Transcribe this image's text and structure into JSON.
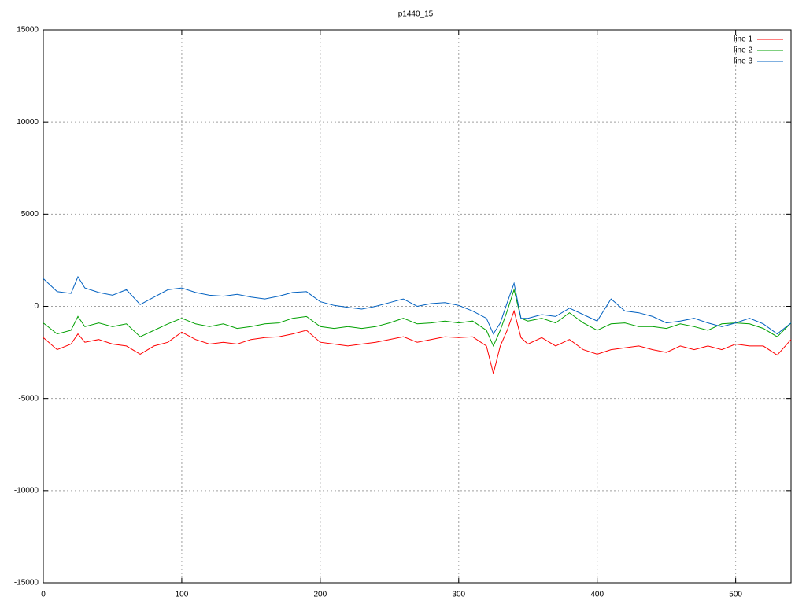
{
  "chart_data": {
    "type": "line",
    "title": "p1440_15",
    "x": [
      0,
      10,
      20,
      25,
      30,
      40,
      50,
      60,
      70,
      80,
      90,
      100,
      110,
      120,
      130,
      140,
      150,
      160,
      170,
      180,
      190,
      200,
      210,
      220,
      230,
      240,
      250,
      260,
      270,
      280,
      290,
      300,
      310,
      320,
      325,
      330,
      335,
      340,
      345,
      350,
      360,
      370,
      380,
      390,
      400,
      410,
      420,
      430,
      440,
      450,
      460,
      470,
      480,
      490,
      500,
      510,
      520,
      530,
      540
    ],
    "series": [
      {
        "name": "line 1",
        "color": "#ff0000",
        "values": [
          -1700,
          -2350,
          -2050,
          -1500,
          -1950,
          -1800,
          -2050,
          -2150,
          -2600,
          -2150,
          -1950,
          -1400,
          -1800,
          -2050,
          -1950,
          -2050,
          -1800,
          -1700,
          -1650,
          -1500,
          -1300,
          -1950,
          -2050,
          -2150,
          -2050,
          -1950,
          -1800,
          -1650,
          -1950,
          -1800,
          -1650,
          -1700,
          -1650,
          -2150,
          -3650,
          -2150,
          -1300,
          -250,
          -1700,
          -2050,
          -1700,
          -2150,
          -1800,
          -2350,
          -2600,
          -2350,
          -2250,
          -2150,
          -2350,
          -2500,
          -2150,
          -2350,
          -2150,
          -2350,
          -2050,
          -2150,
          -2150,
          -2650,
          -1800
        ]
      },
      {
        "name": "line 2",
        "color": "#00a000",
        "values": [
          -900,
          -1500,
          -1300,
          -550,
          -1100,
          -900,
          -1100,
          -950,
          -1650,
          -1300,
          -950,
          -650,
          -950,
          -1100,
          -950,
          -1200,
          -1100,
          -950,
          -900,
          -650,
          -550,
          -1100,
          -1200,
          -1100,
          -1200,
          -1100,
          -900,
          -650,
          -950,
          -900,
          -800,
          -900,
          -800,
          -1300,
          -2150,
          -1300,
          -250,
          900,
          -650,
          -800,
          -650,
          -900,
          -350,
          -900,
          -1300,
          -950,
          -900,
          -1100,
          -1100,
          -1200,
          -950,
          -1100,
          -1300,
          -950,
          -900,
          -950,
          -1200,
          -1650,
          -900
        ]
      },
      {
        "name": "line 3",
        "color": "#0060c0",
        "values": [
          1500,
          800,
          700,
          1600,
          1000,
          750,
          600,
          900,
          100,
          500,
          900,
          1000,
          750,
          600,
          550,
          650,
          500,
          400,
          550,
          750,
          800,
          250,
          50,
          -50,
          -150,
          0,
          200,
          400,
          0,
          150,
          200,
          50,
          -250,
          -650,
          -1500,
          -900,
          200,
          1250,
          -650,
          -650,
          -450,
          -550,
          -100,
          -450,
          -800,
          400,
          -250,
          -350,
          -550,
          -900,
          -800,
          -650,
          -900,
          -1100,
          -900,
          -650,
          -950,
          -1500,
          -900
        ]
      }
    ],
    "xlim": [
      0,
      540
    ],
    "xticks": [
      0,
      100,
      200,
      300,
      400,
      500
    ],
    "ylim": [
      -15000,
      15000
    ],
    "yticks": [
      -15000,
      -10000,
      -5000,
      0,
      5000,
      10000,
      15000
    ],
    "grid": true,
    "legend": "top right"
  }
}
